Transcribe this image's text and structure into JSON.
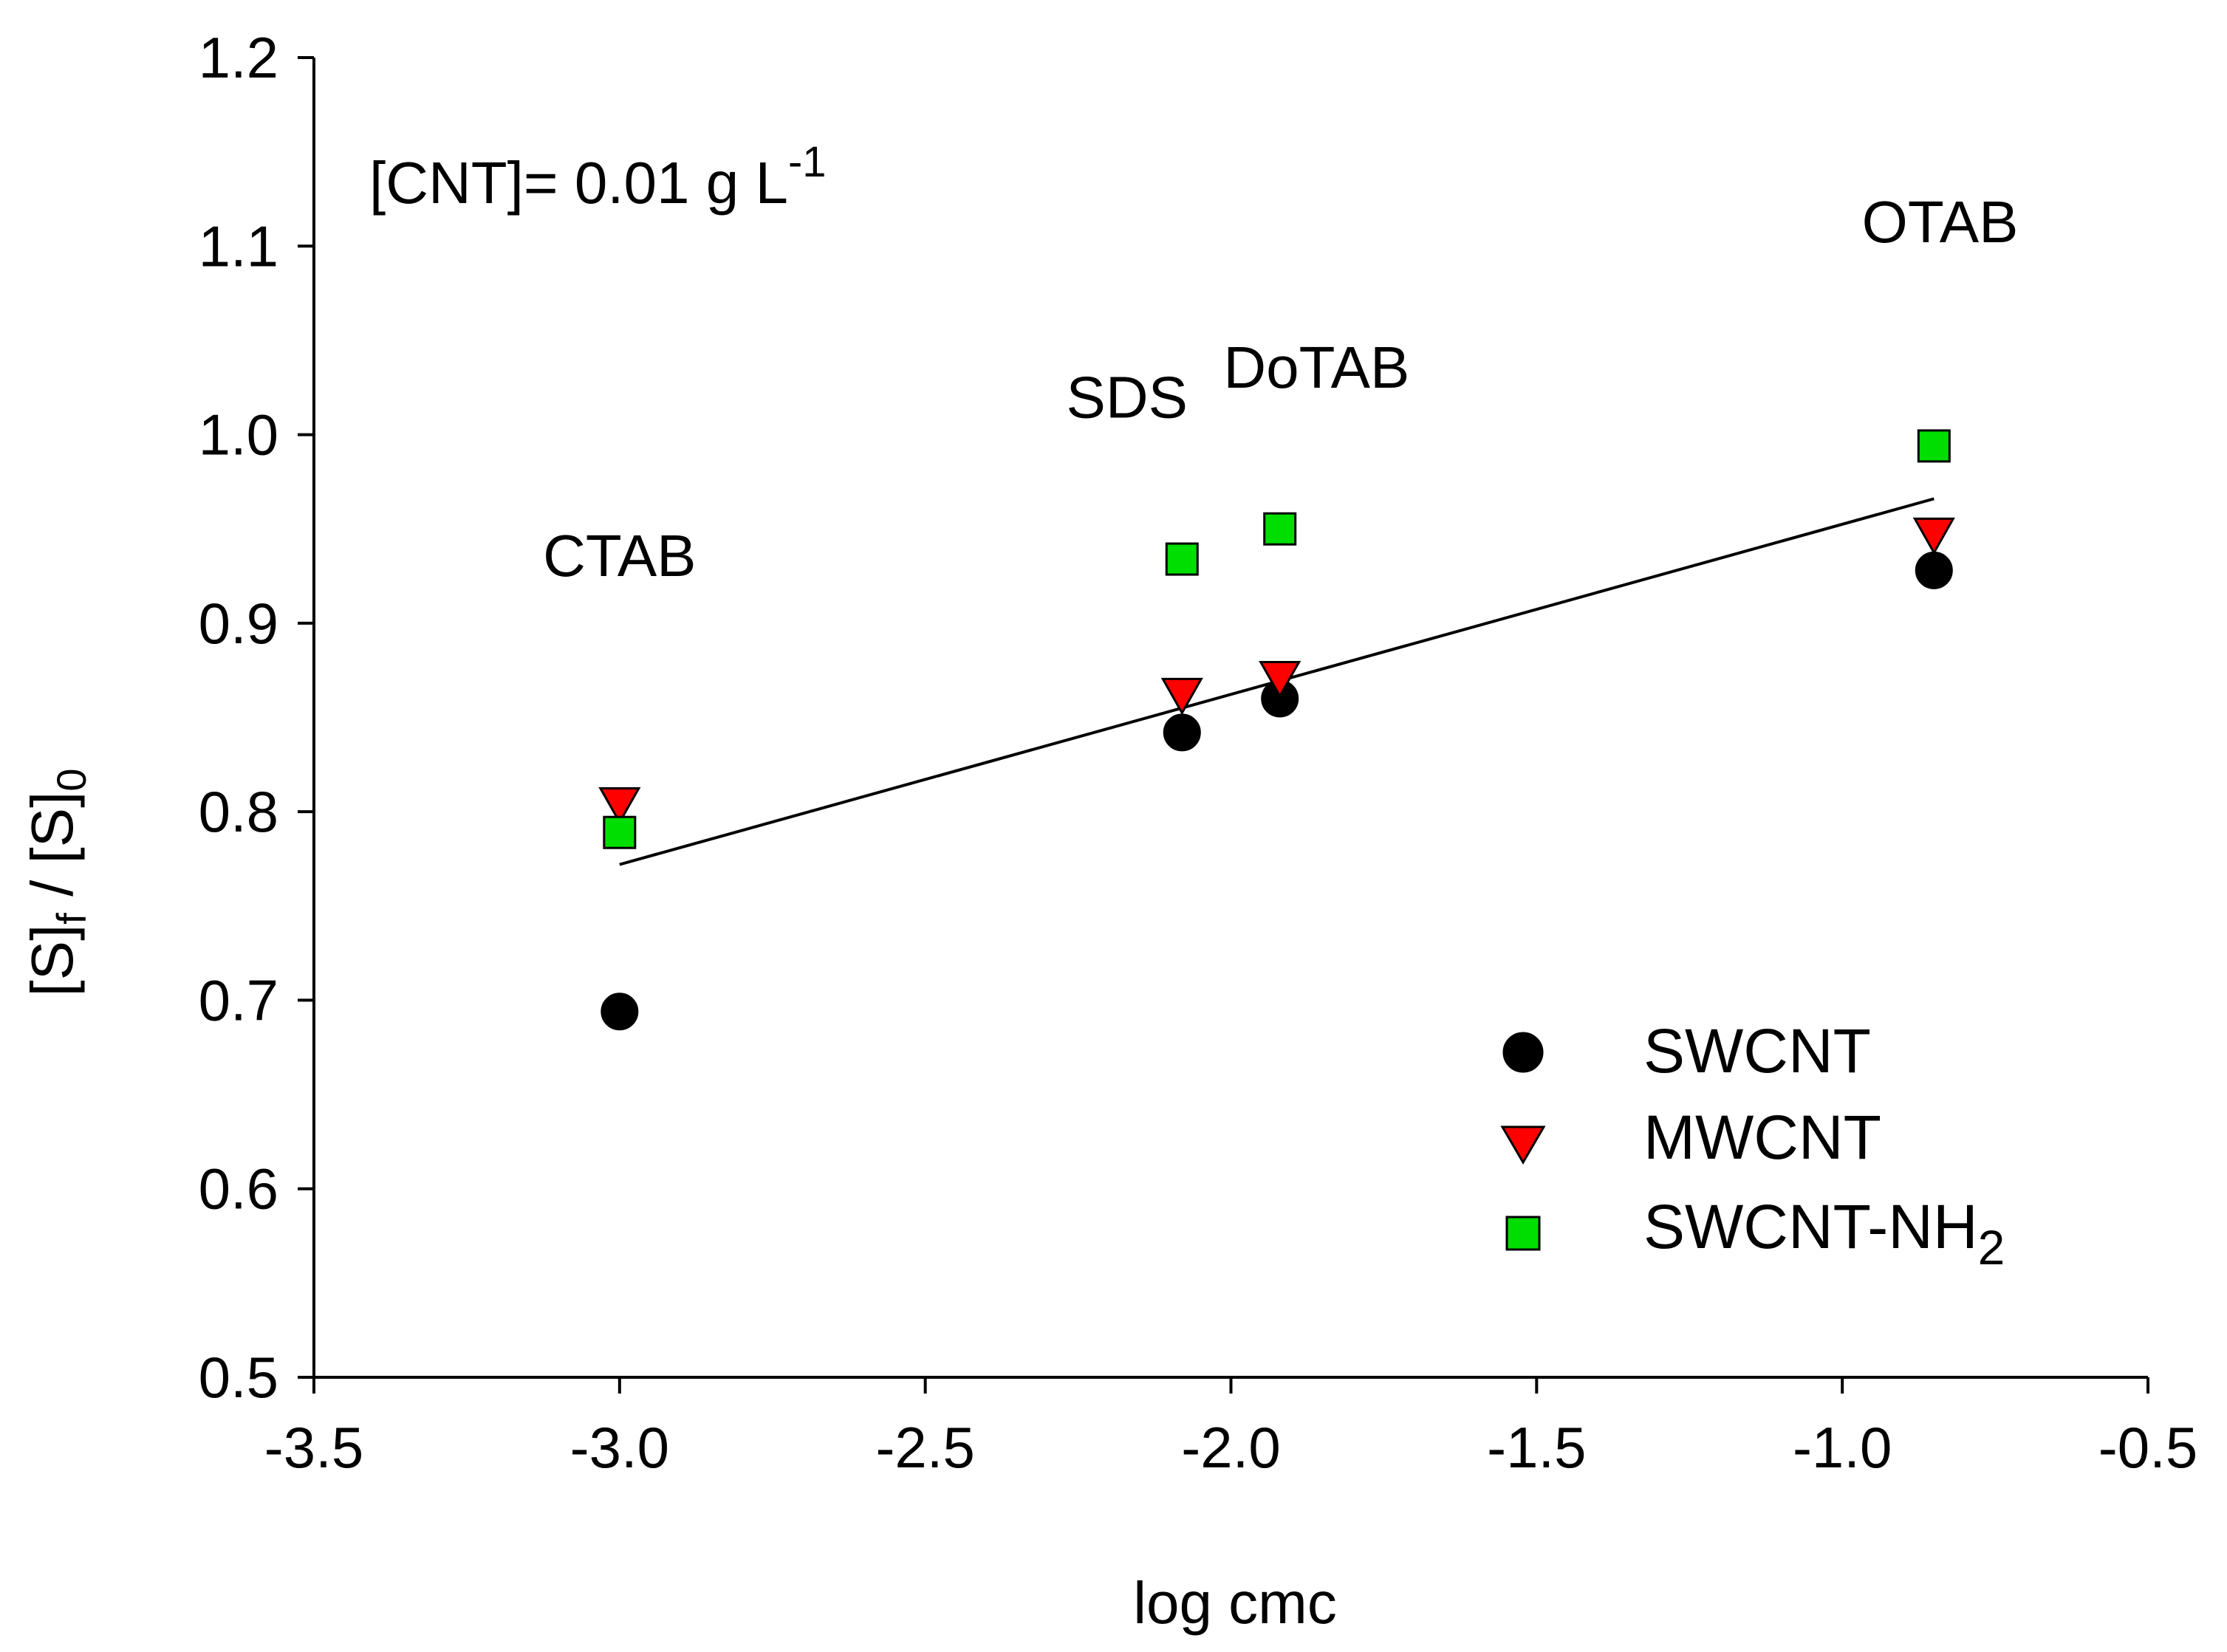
{
  "chart_data": {
    "type": "scatter",
    "title": "",
    "xlabel": "log cmc",
    "ylabel": {
      "main": "[S]",
      "sub_f": "f",
      "sep": " / [S]",
      "sub_0": "0"
    },
    "xlim": [
      -3.5,
      -0.5
    ],
    "ylim": [
      0.5,
      1.2
    ],
    "x_ticks": [
      -3.5,
      -3.0,
      -2.5,
      -2.0,
      -1.5,
      -1.0,
      -0.5
    ],
    "x_tick_labels": [
      "-3.5",
      "-3.0",
      "-2.5",
      "-2.0",
      "-1.5",
      "-1.0",
      "-0.5"
    ],
    "y_ticks": [
      0.5,
      0.6,
      0.7,
      0.8,
      0.9,
      1.0,
      1.1,
      1.2
    ],
    "y_tick_labels": [
      "0.5",
      "0.6",
      "0.7",
      "0.8",
      "0.9",
      "1.0",
      "1.1",
      "1.2"
    ],
    "grid": false,
    "legend_position": "bottom-right",
    "series": [
      {
        "name": "SWCNT",
        "marker": "circle",
        "color": "#000000",
        "x": [
          -3.0,
          -2.08,
          -1.92,
          -0.85
        ],
        "y": [
          0.694,
          0.842,
          0.86,
          0.928
        ]
      },
      {
        "name": "MWCNT",
        "marker": "triangle-down",
        "color": "#ff0000",
        "x": [
          -3.0,
          -2.08,
          -1.92,
          -0.85
        ],
        "y": [
          0.803,
          0.861,
          0.87,
          0.946
        ]
      },
      {
        "name": "SWCNT-NH",
        "name_sub": "2",
        "marker": "square",
        "color": "#00dd00",
        "x": [
          -3.0,
          -2.08,
          -1.92,
          -0.85
        ],
        "y": [
          0.789,
          0.934,
          0.95,
          0.994
        ]
      }
    ],
    "fit_line": {
      "x": [
        -3.0,
        -0.85
      ],
      "y": [
        0.772,
        0.966
      ]
    },
    "annotations": [
      {
        "text": "CTAB",
        "x": -3.0,
        "y": 0.925
      },
      {
        "text": "SDS",
        "x": -2.17,
        "y": 1.009
      },
      {
        "text": "DoTAB",
        "x": -1.86,
        "y": 1.025
      },
      {
        "text": "OTAB",
        "x": -0.84,
        "y": 1.102
      }
    ],
    "condition": {
      "text": "[CNT]= 0.01 g L",
      "sup": "-1"
    }
  }
}
